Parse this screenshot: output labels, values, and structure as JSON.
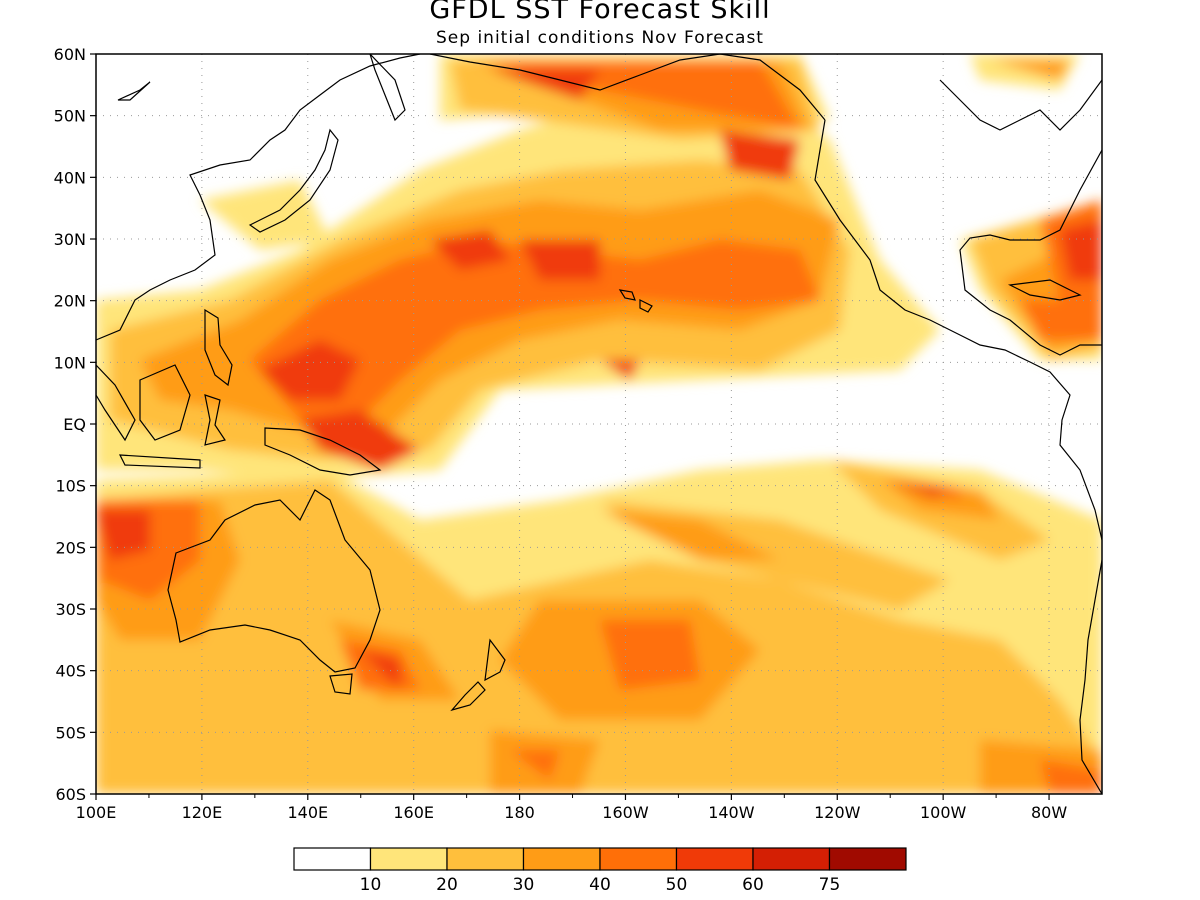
{
  "title": "GFDL SST Forecast Skill",
  "subtitle": "Sep initial conditions  Nov Forecast",
  "lat_labels": [
    "60N",
    "50N",
    "40N",
    "30N",
    "20N",
    "10N",
    "EQ",
    "10S",
    "20S",
    "30S",
    "40S",
    "50S",
    "60S"
  ],
  "lon_labels": [
    "100E",
    "120E",
    "140E",
    "160E",
    "180",
    "160W",
    "140W",
    "120W",
    "100W",
    "80W"
  ],
  "colorbar": {
    "colors": [
      "#ffffff",
      "#ffe57a",
      "#ffbf3c",
      "#ff9c16",
      "#ff6f08",
      "#f03a08",
      "#d41f04",
      "#a00a00"
    ],
    "labels": [
      "10",
      "20",
      "30",
      "40",
      "50",
      "60",
      "75"
    ]
  },
  "map_extent": {
    "lon_min": 100,
    "lon_max": 290,
    "lat_min": -60,
    "lat_max": 60
  }
}
